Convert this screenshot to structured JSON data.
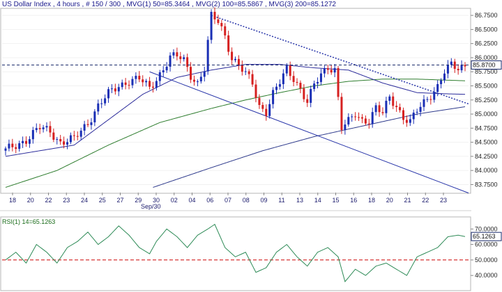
{
  "header": {
    "instrument": "US Dollar Index",
    "timeframe": "4 hours",
    "bars_label": "# 150 / 300",
    "mvg1_label": "MVG(1) 50=85.3464",
    "mvg2_label": "MVG(2) 100=85.5867",
    "mvg3_label": "MVG(3) 200=85.1272"
  },
  "price_axis": {
    "ticks": [
      "86.7500",
      "86.5000",
      "86.2500",
      "86.0000",
      "85.7500",
      "85.5000",
      "85.2500",
      "85.0000",
      "84.7500",
      "84.5000",
      "84.2500",
      "84.0000",
      "83.7500"
    ],
    "last_price_label": "85.8700"
  },
  "rsi_panel": {
    "label": "RSI(1) 14=65.1263",
    "ticks": [
      "70.0000",
      "60.0000",
      "50.0000",
      "40.0000"
    ],
    "last_value_label": "65.1263"
  },
  "x_axis": {
    "day_labels": [
      "18",
      "20",
      "22",
      "23",
      "24",
      "25",
      "27",
      "29",
      "30",
      "02",
      "04",
      "06",
      "07",
      "08",
      "09",
      "11",
      "13",
      "14",
      "15",
      "16",
      "18",
      "20",
      "21",
      "22",
      "23"
    ],
    "month_label": "Sep/30"
  },
  "chart_data": {
    "type": "candlestick",
    "title": "US Dollar Index , 4 hours, # 150 / 300",
    "ylim": [
      83.62,
      86.85
    ],
    "last_price": 85.87,
    "colors": {
      "up_candle": "#1a2fb5",
      "down_candle": "#d62020",
      "mvg1": "#2a2a9a",
      "mvg2": "#2e7d2e",
      "mvg3": "#2e3a8c",
      "trendline": "#2633a8",
      "rsi": "#2e8b57",
      "rsi_reference": "#cc0000",
      "last_price_line": "#1a2a6c"
    },
    "price_anchor_points": [
      [
        0,
        84.35
      ],
      [
        6,
        84.55
      ],
      [
        10,
        84.75
      ],
      [
        13,
        84.7
      ],
      [
        16,
        84.5
      ],
      [
        20,
        84.55
      ],
      [
        24,
        84.85
      ],
      [
        27,
        85.15
      ],
      [
        30,
        85.35
      ],
      [
        33,
        85.5
      ],
      [
        36,
        85.6
      ],
      [
        39,
        85.62
      ],
      [
        42,
        85.45
      ],
      [
        45,
        85.72
      ],
      [
        48,
        86.0
      ],
      [
        50,
        86.02
      ],
      [
        52,
        85.95
      ],
      [
        54,
        85.7
      ],
      [
        56,
        85.55
      ],
      [
        58,
        85.8
      ],
      [
        60,
        86.72
      ],
      [
        62,
        86.65
      ],
      [
        64,
        86.4
      ],
      [
        66,
        86.0
      ],
      [
        68,
        85.85
      ],
      [
        70,
        85.7
      ],
      [
        72,
        85.55
      ],
      [
        74,
        85.15
      ],
      [
        76,
        85.05
      ],
      [
        78,
        85.35
      ],
      [
        80,
        85.55
      ],
      [
        82,
        85.8
      ],
      [
        84,
        85.65
      ],
      [
        86,
        85.45
      ],
      [
        88,
        85.2
      ],
      [
        90,
        85.5
      ],
      [
        92,
        85.7
      ],
      [
        94,
        85.85
      ],
      [
        96,
        85.8
      ],
      [
        98,
        84.75
      ],
      [
        100,
        84.85
      ],
      [
        102,
        85.0
      ],
      [
        104,
        84.9
      ],
      [
        106,
        84.9
      ],
      [
        108,
        85.1
      ],
      [
        110,
        85.0
      ],
      [
        112,
        85.3
      ],
      [
        114,
        85.15
      ],
      [
        116,
        84.95
      ],
      [
        118,
        84.85
      ],
      [
        120,
        85.05
      ],
      [
        122,
        85.2
      ],
      [
        124,
        85.35
      ],
      [
        126,
        85.5
      ],
      [
        128,
        85.75
      ],
      [
        130,
        85.85
      ],
      [
        132,
        85.8
      ],
      [
        134,
        85.87
      ]
    ],
    "candle_count": 135,
    "mvg1_points": [
      [
        0,
        84.25
      ],
      [
        20,
        84.45
      ],
      [
        30,
        84.9
      ],
      [
        40,
        85.35
      ],
      [
        50,
        85.65
      ],
      [
        60,
        85.78
      ],
      [
        70,
        85.88
      ],
      [
        80,
        85.88
      ],
      [
        90,
        85.82
      ],
      [
        100,
        85.78
      ],
      [
        110,
        85.55
      ],
      [
        120,
        85.38
      ],
      [
        128,
        85.36
      ],
      [
        134,
        85.35
      ]
    ],
    "mvg2_points": [
      [
        0,
        83.7
      ],
      [
        15,
        84.0
      ],
      [
        30,
        84.45
      ],
      [
        45,
        84.85
      ],
      [
        60,
        85.1
      ],
      [
        70,
        85.25
      ],
      [
        80,
        85.38
      ],
      [
        90,
        85.5
      ],
      [
        100,
        85.58
      ],
      [
        110,
        85.62
      ],
      [
        120,
        85.62
      ],
      [
        134,
        85.59
      ]
    ],
    "mvg3_points": [
      [
        43,
        83.7
      ],
      [
        60,
        84.05
      ],
      [
        75,
        84.35
      ],
      [
        90,
        84.6
      ],
      [
        105,
        84.8
      ],
      [
        120,
        85.0
      ],
      [
        134,
        85.13
      ]
    ],
    "trendlines": [
      {
        "from": [
          60,
          86.75
        ],
        "to": [
          150,
          85.18
        ]
      },
      {
        "from": [
          42,
          85.75
        ],
        "to": [
          150,
          83.6
        ]
      }
    ],
    "rsi_ylim": [
      32,
      76
    ],
    "rsi_reference_level": 50,
    "rsi_points": [
      [
        0,
        50
      ],
      [
        3,
        55
      ],
      [
        6,
        48
      ],
      [
        9,
        60
      ],
      [
        12,
        55
      ],
      [
        15,
        48
      ],
      [
        18,
        58
      ],
      [
        21,
        62
      ],
      [
        24,
        68
      ],
      [
        27,
        60
      ],
      [
        30,
        65
      ],
      [
        33,
        72
      ],
      [
        36,
        66
      ],
      [
        39,
        58
      ],
      [
        42,
        54
      ],
      [
        44,
        62
      ],
      [
        47,
        70
      ],
      [
        50,
        65
      ],
      [
        53,
        58
      ],
      [
        56,
        66
      ],
      [
        59,
        70
      ],
      [
        61,
        73
      ],
      [
        64,
        58
      ],
      [
        67,
        52
      ],
      [
        70,
        55
      ],
      [
        73,
        42
      ],
      [
        76,
        45
      ],
      [
        79,
        55
      ],
      [
        82,
        60
      ],
      [
        85,
        52
      ],
      [
        88,
        46
      ],
      [
        91,
        55
      ],
      [
        94,
        58
      ],
      [
        97,
        52
      ],
      [
        99,
        36
      ],
      [
        102,
        44
      ],
      [
        105,
        40
      ],
      [
        108,
        46
      ],
      [
        111,
        48
      ],
      [
        114,
        44
      ],
      [
        117,
        40
      ],
      [
        120,
        52
      ],
      [
        123,
        55
      ],
      [
        126,
        58
      ],
      [
        129,
        65
      ],
      [
        132,
        66
      ],
      [
        134,
        65.13
      ]
    ]
  }
}
